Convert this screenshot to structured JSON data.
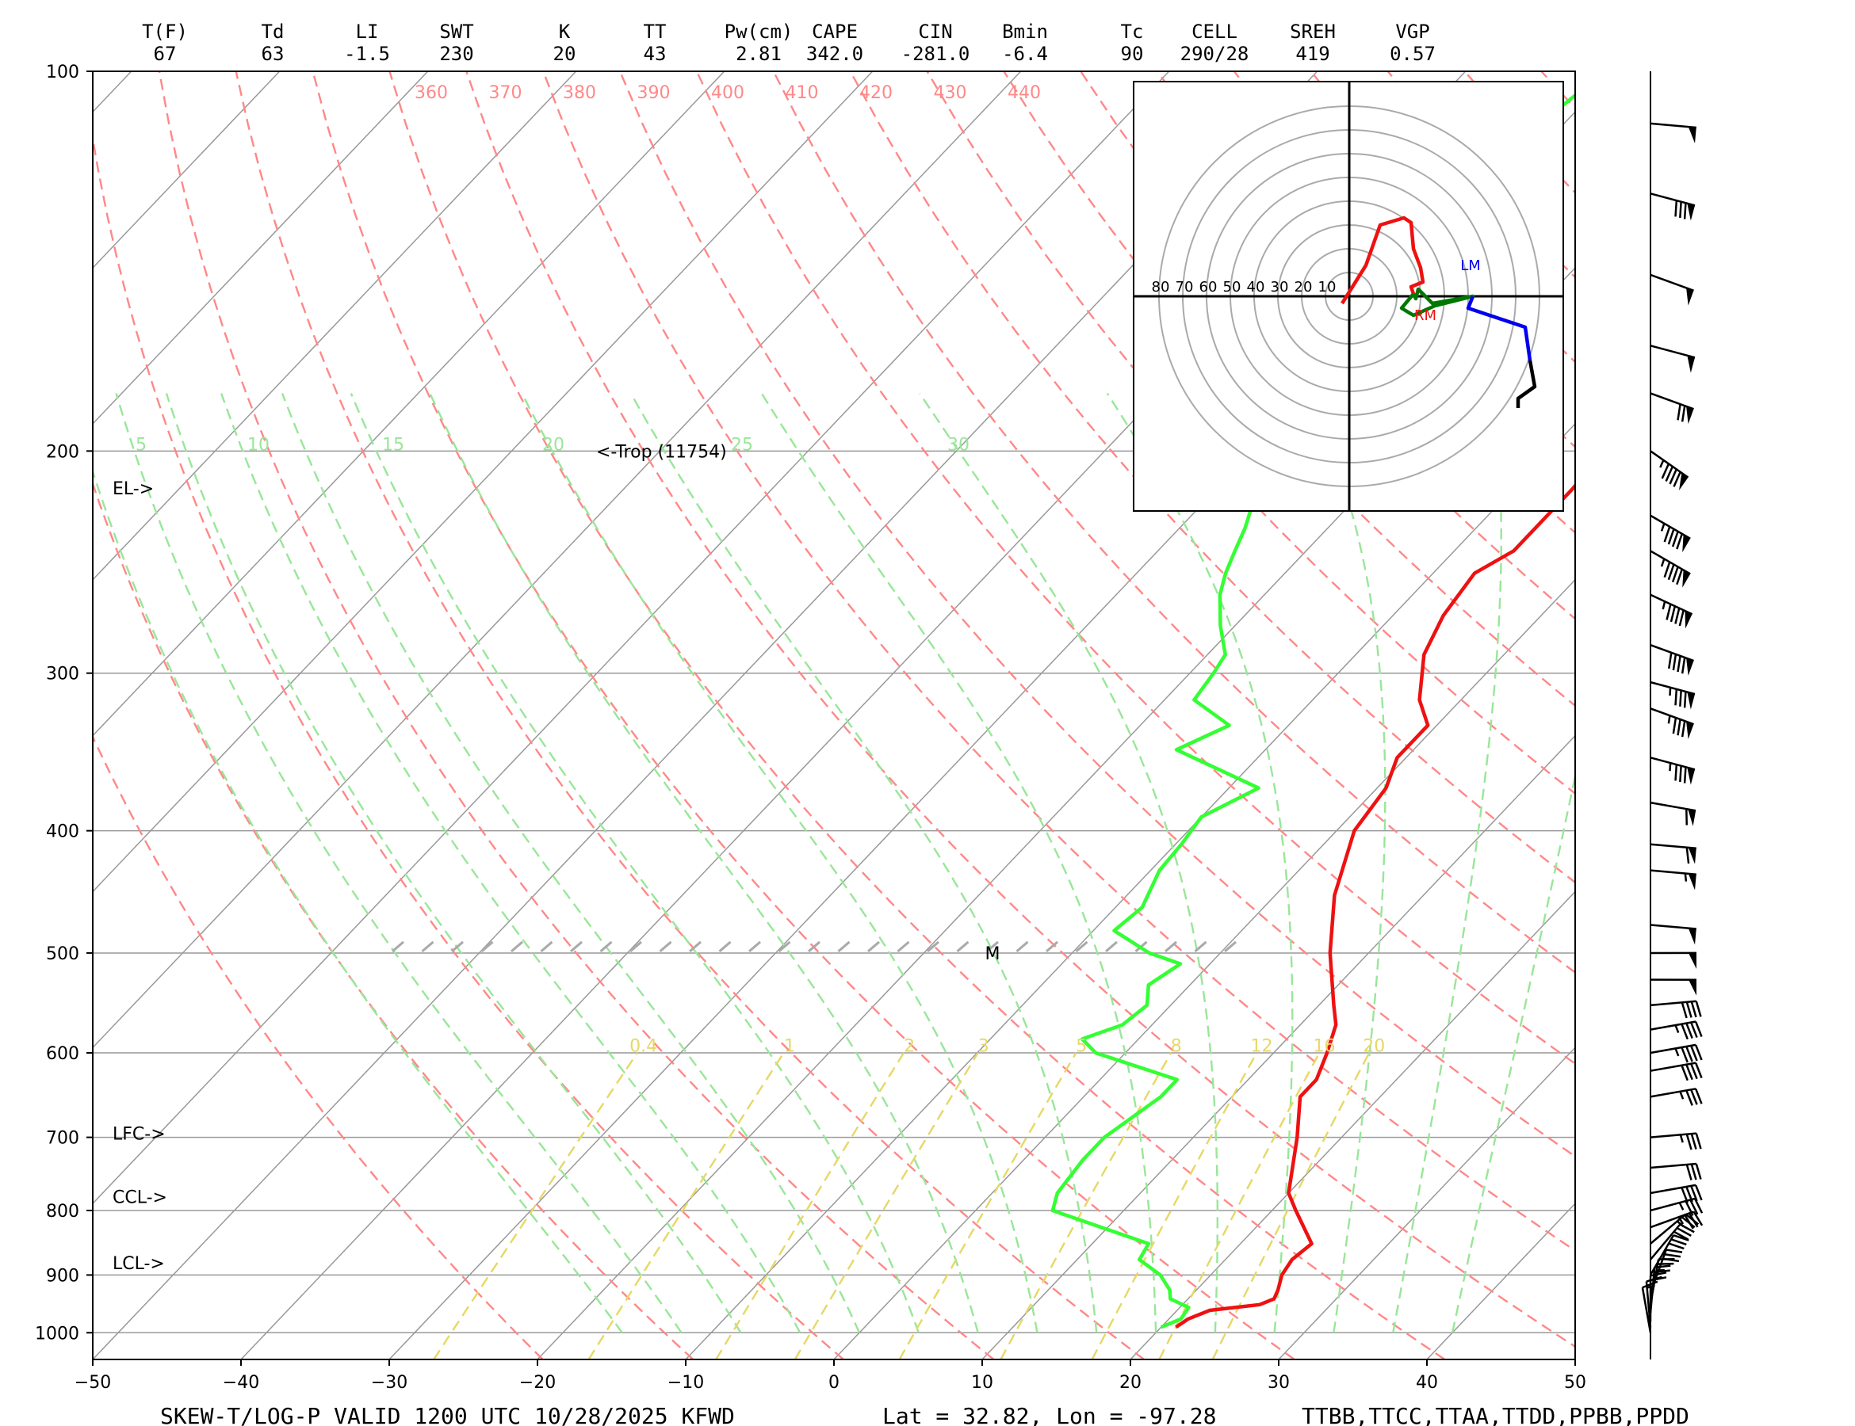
{
  "indices": [
    {
      "label": "T(F)",
      "value": "67"
    },
    {
      "label": "Td",
      "value": "63"
    },
    {
      "label": "LI",
      "value": "-1.5"
    },
    {
      "label": "SWT",
      "value": "230"
    },
    {
      "label": "K",
      "value": "20"
    },
    {
      "label": "TT",
      "value": "43"
    },
    {
      "label": "Pw(cm)",
      "value": "2.81"
    },
    {
      "label": "CAPE",
      "value": "342.0"
    },
    {
      "label": "CIN",
      "value": "-281.0"
    },
    {
      "label": "Bmin",
      "value": "-6.4"
    },
    {
      "label": "Tc",
      "value": "90"
    },
    {
      "label": "CELL",
      "value": "290/28"
    },
    {
      "label": "SREH",
      "value": "419"
    },
    {
      "label": "VGP",
      "value": "0.57"
    }
  ],
  "footer": {
    "title": "SKEW-T/LOG-P  VALID 1200 UTC 10/28/2025   KFWD",
    "location": "Lat = 32.82, Lon = -97.28",
    "codes": "TTBB,TTCC,TTAA,TTDD,PPBB,PPDD"
  },
  "colors": {
    "temperature": "#ee1111",
    "dewpoint": "#33ff33",
    "isotherm": "#999999",
    "dry_adiabat": "#ff8888",
    "moist_adiabat": "#99e699",
    "mixing_ratio": "#e6d866",
    "hodo_red": "#ee1111",
    "hodo_green": "#007700",
    "hodo_blue": "#0000ee",
    "hodo_black": "#000000"
  },
  "chart_data": {
    "type": "skew-t",
    "xlim": [
      -50,
      50
    ],
    "ylim": [
      1050,
      100
    ],
    "xticks": [
      "−50",
      "−40",
      "−30",
      "−20",
      "−10",
      "0",
      "10",
      "20",
      "30",
      "40",
      "50"
    ],
    "pressure_levels": [
      "100",
      "200",
      "300",
      "400",
      "500",
      "600",
      "700",
      "800",
      "900",
      "1000"
    ],
    "theta_labels": [
      "360",
      "370",
      "380",
      "390",
      "400",
      "410",
      "420",
      "430",
      "440"
    ],
    "theta_e_labels": [
      "5",
      "10",
      "15",
      "20",
      "25",
      "30"
    ],
    "mixing_ratio_labels": [
      "0.4",
      "1",
      "2",
      "3",
      "5",
      "8",
      "12",
      "16",
      "20"
    ],
    "temperature": [
      [
        990,
        21.0
      ],
      [
        975,
        21.3
      ],
      [
        960,
        22.2
      ],
      [
        950,
        25.2
      ],
      [
        940,
        25.8
      ],
      [
        925,
        25.5
      ],
      [
        900,
        24.8
      ],
      [
        875,
        24.5
      ],
      [
        850,
        24.8
      ],
      [
        800,
        21.6
      ],
      [
        775,
        20.0
      ],
      [
        700,
        17.0
      ],
      [
        650,
        14.6
      ],
      [
        630,
        14.6
      ],
      [
        600,
        13.6
      ],
      [
        570,
        12.4
      ],
      [
        550,
        11.0
      ],
      [
        500,
        7.4
      ],
      [
        450,
        4.0
      ],
      [
        400,
        1.2
      ],
      [
        370,
        0.6
      ],
      [
        350,
        -0.6
      ],
      [
        330,
        -0.6
      ],
      [
        315,
        -2.8
      ],
      [
        290,
        -5.4
      ],
      [
        270,
        -6.6
      ],
      [
        250,
        -7.2
      ],
      [
        240,
        -6.0
      ],
      [
        215,
        -6.0
      ],
      [
        200,
        -6.2
      ],
      [
        180,
        -6.6
      ],
      [
        165,
        -6.0
      ],
      [
        145,
        -3.6
      ],
      [
        138,
        -2.6
      ],
      [
        130,
        -4.8
      ],
      [
        120,
        -4.2
      ],
      [
        105,
        -5.8
      ],
      [
        100,
        -5.0
      ]
    ],
    "dewpoint": [
      [
        990,
        20.0
      ],
      [
        975,
        20.8
      ],
      [
        955,
        20.6
      ],
      [
        940,
        18.8
      ],
      [
        925,
        18.2
      ],
      [
        900,
        16.6
      ],
      [
        875,
        14.2
      ],
      [
        850,
        13.8
      ],
      [
        800,
        5.2
      ],
      [
        775,
        4.4
      ],
      [
        730,
        4.0
      ],
      [
        700,
        4.0
      ],
      [
        650,
        5.2
      ],
      [
        630,
        5.2
      ],
      [
        600,
        -2.0
      ],
      [
        585,
        -3.8
      ],
      [
        570,
        -2.0
      ],
      [
        550,
        -1.6
      ],
      [
        530,
        -2.8
      ],
      [
        510,
        -2.0
      ],
      [
        500,
        -4.8
      ],
      [
        480,
        -8.6
      ],
      [
        460,
        -8.2
      ],
      [
        430,
        -9.4
      ],
      [
        410,
        -9.6
      ],
      [
        390,
        -10.0
      ],
      [
        370,
        -8.0
      ],
      [
        345,
        -16.0
      ],
      [
        330,
        -14.0
      ],
      [
        315,
        -18.0
      ],
      [
        300,
        -18.4
      ],
      [
        290,
        -18.8
      ],
      [
        275,
        -21.0
      ],
      [
        260,
        -23.0
      ],
      [
        250,
        -24.0
      ],
      [
        240,
        -24.8
      ],
      [
        230,
        -25.6
      ],
      [
        215,
        -27.2
      ],
      [
        200,
        -27.8
      ],
      [
        190,
        -28.6
      ],
      [
        180,
        -30.6
      ],
      [
        165,
        -31.6
      ],
      [
        150,
        -33.4
      ],
      [
        140,
        -34.2
      ],
      [
        125,
        -33.2
      ],
      [
        110,
        -31.6
      ],
      [
        100,
        -30.6
      ]
    ],
    "annotations": [
      {
        "text": "<-Trop (11754)",
        "p": 200
      },
      {
        "text": "EL->",
        "p": 214
      },
      {
        "text": "LFC->",
        "p": 695
      },
      {
        "text": "CCL->",
        "p": 780
      },
      {
        "text": "LCL->",
        "p": 880
      },
      {
        "text": "M",
        "p": 500
      }
    ],
    "wind_barbs": [
      {
        "p": 1000,
        "dir": 170,
        "spd": 10
      },
      {
        "p": 990,
        "dir": 175,
        "spd": 15
      },
      {
        "p": 980,
        "dir": 180,
        "spd": 20
      },
      {
        "p": 965,
        "dir": 185,
        "spd": 20
      },
      {
        "p": 950,
        "dir": 190,
        "spd": 25
      },
      {
        "p": 930,
        "dir": 200,
        "spd": 30
      },
      {
        "p": 900,
        "dir": 210,
        "spd": 30
      },
      {
        "p": 875,
        "dir": 220,
        "spd": 30
      },
      {
        "p": 850,
        "dir": 230,
        "spd": 25
      },
      {
        "p": 825,
        "dir": 250,
        "spd": 35
      },
      {
        "p": 800,
        "dir": 255,
        "spd": 35
      },
      {
        "p": 775,
        "dir": 260,
        "spd": 40
      },
      {
        "p": 740,
        "dir": 265,
        "spd": 30
      },
      {
        "p": 700,
        "dir": 265,
        "spd": 35
      },
      {
        "p": 650,
        "dir": 260,
        "spd": 35
      },
      {
        "p": 620,
        "dir": 260,
        "spd": 40
      },
      {
        "p": 600,
        "dir": 260,
        "spd": 45
      },
      {
        "p": 575,
        "dir": 260,
        "spd": 45
      },
      {
        "p": 550,
        "dir": 265,
        "spd": 40
      },
      {
        "p": 525,
        "dir": 270,
        "spd": 50
      },
      {
        "p": 500,
        "dir": 270,
        "spd": 50
      },
      {
        "p": 475,
        "dir": 275,
        "spd": 50
      },
      {
        "p": 430,
        "dir": 275,
        "spd": 55
      },
      {
        "p": 410,
        "dir": 275,
        "spd": 60
      },
      {
        "p": 380,
        "dir": 280,
        "spd": 60
      },
      {
        "p": 350,
        "dir": 285,
        "spd": 85
      },
      {
        "p": 320,
        "dir": 290,
        "spd": 85
      },
      {
        "p": 305,
        "dir": 285,
        "spd": 85
      },
      {
        "p": 285,
        "dir": 290,
        "spd": 90
      },
      {
        "p": 260,
        "dir": 295,
        "spd": 95
      },
      {
        "p": 240,
        "dir": 300,
        "spd": 95
      },
      {
        "p": 225,
        "dir": 300,
        "spd": 95
      },
      {
        "p": 200,
        "dir": 305,
        "spd": 95
      },
      {
        "p": 180,
        "dir": 290,
        "spd": 70
      },
      {
        "p": 165,
        "dir": 285,
        "spd": 50
      },
      {
        "p": 145,
        "dir": 290,
        "spd": 50
      },
      {
        "p": 125,
        "dir": 285,
        "spd": 80
      },
      {
        "p": 110,
        "dir": 275,
        "spd": 50
      }
    ],
    "hodograph": {
      "ring_labels": [
        "80",
        "70",
        "60",
        "50",
        "40",
        "30",
        "20",
        "10"
      ],
      "red": [
        [
          -3,
          -3
        ],
        [
          7,
          13
        ],
        [
          13,
          30
        ],
        [
          23,
          33
        ],
        [
          26,
          31
        ],
        [
          27,
          20
        ],
        [
          30,
          12
        ],
        [
          31,
          6
        ],
        [
          26,
          4
        ],
        [
          27,
          1
        ]
      ],
      "green": [
        [
          27,
          1
        ],
        [
          28,
          -1
        ],
        [
          29,
          3
        ],
        [
          35,
          -3
        ],
        [
          52,
          0
        ],
        [
          36,
          -4
        ],
        [
          27,
          -8
        ],
        [
          22,
          -5
        ],
        [
          27,
          1
        ]
      ],
      "blue": [
        [
          52,
          0
        ],
        [
          50,
          -5
        ],
        [
          74,
          -13
        ],
        [
          76,
          -27
        ]
      ],
      "black": [
        [
          76,
          -27
        ],
        [
          78,
          -38
        ],
        [
          71,
          -43
        ],
        [
          71,
          -47
        ]
      ],
      "labels": [
        {
          "text": "LM",
          "u": 51,
          "v": 13
        },
        {
          "text": "RM",
          "u": 32,
          "v": -8
        }
      ]
    }
  }
}
